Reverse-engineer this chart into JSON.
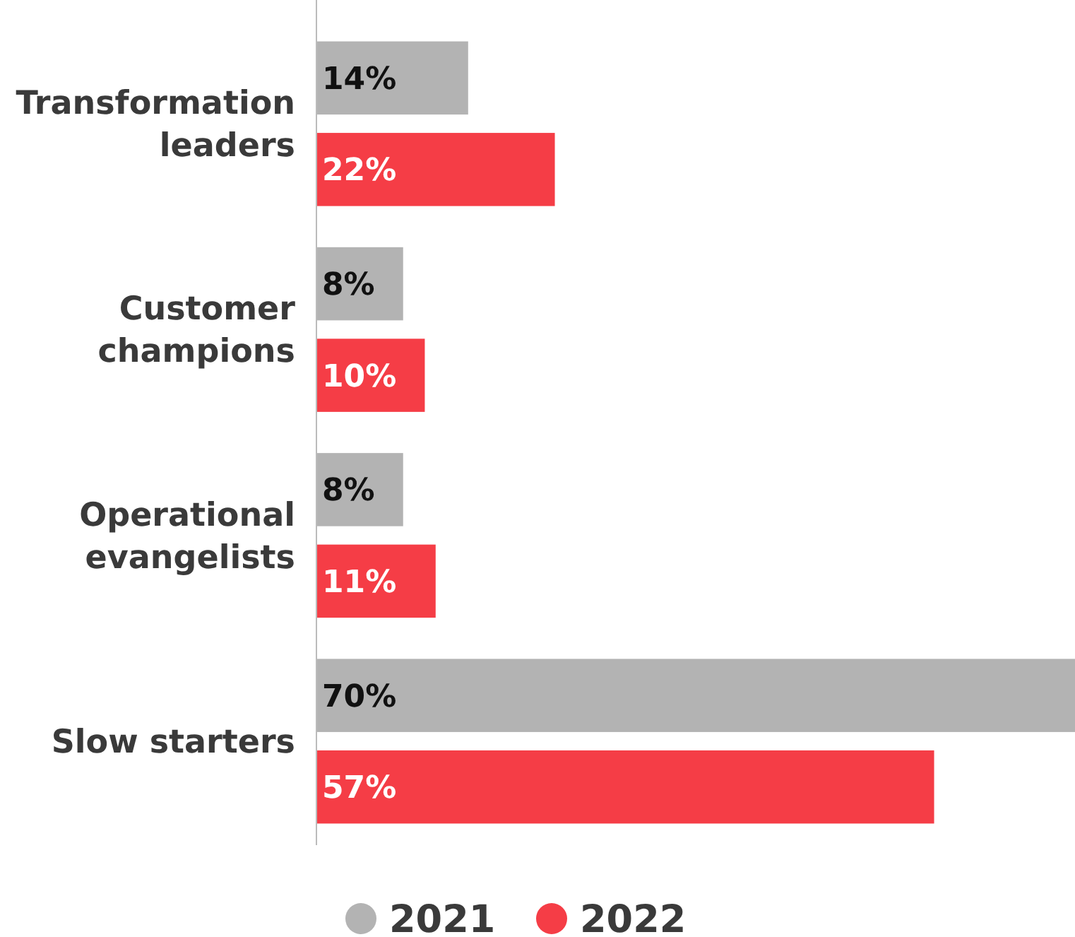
{
  "chart_data": {
    "type": "bar",
    "orientation": "horizontal",
    "categories": [
      "Transformation leaders",
      "Customer champions",
      "Operational evangelists",
      "Slow starters"
    ],
    "series": [
      {
        "name": "2021",
        "color": "#b3b3b3",
        "values": [
          14,
          8,
          8,
          70
        ],
        "value_labels": [
          "14%",
          "8%",
          "8%",
          "70%"
        ]
      },
      {
        "name": "2022",
        "color": "#f53d46",
        "values": [
          22,
          10,
          11,
          57
        ],
        "value_labels": [
          "22%",
          "10%",
          "11%",
          "57%"
        ]
      }
    ],
    "legend": "bottom"
  }
}
